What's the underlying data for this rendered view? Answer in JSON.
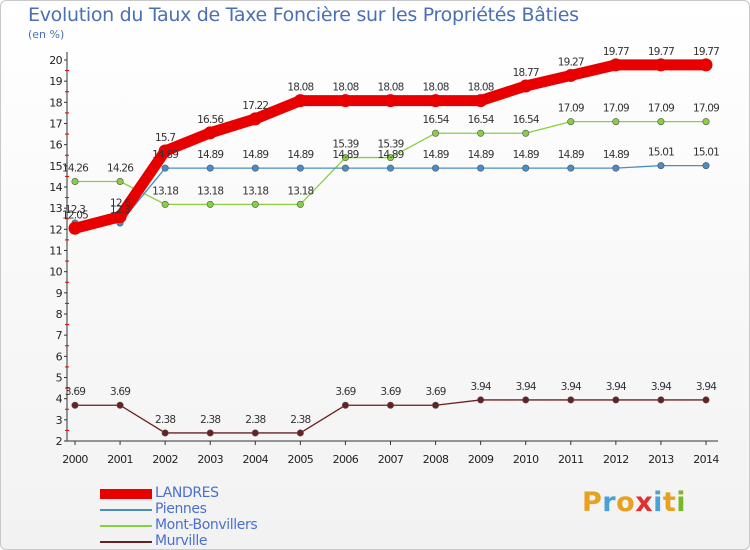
{
  "title": "Evolution du Taux de Taxe Foncière sur les Propriétés Bâties",
  "unit_label": "(en %)",
  "logo": {
    "text": "Proxiti",
    "colors": [
      "#e8a020",
      "#4aa0d8",
      "#e8a020",
      "#e23030",
      "#4aa0d8",
      "#e8a020",
      "#78b828"
    ]
  },
  "chart_data": {
    "type": "line",
    "title": "Evolution du Taux de Taxe Foncière sur les Propriétés Bâties",
    "ylabel": "(en %)",
    "xlabel": "",
    "categories": [
      "2000",
      "2001",
      "2002",
      "2003",
      "2004",
      "2005",
      "2006",
      "2007",
      "2008",
      "2009",
      "2010",
      "2011",
      "2012",
      "2013",
      "2014"
    ],
    "ylim": [
      2,
      20
    ],
    "yticks": [
      "2",
      "3",
      "4",
      "5",
      "6",
      "7",
      "8",
      "9",
      "10",
      "11",
      "12",
      "13",
      "14",
      "15",
      "16",
      "17",
      "18",
      "19",
      "20"
    ],
    "grid": false,
    "legend_position": "bottom-left",
    "series": [
      {
        "name": "LANDRES",
        "color": "#e80000",
        "thick": true,
        "values": [
          12.05,
          12.6,
          15.7,
          16.56,
          17.22,
          18.08,
          18.08,
          18.08,
          18.08,
          18.08,
          18.77,
          19.27,
          19.77,
          19.77,
          19.77
        ],
        "labels": [
          "12.05",
          "12.6",
          "15.7",
          "16.56",
          "17.22",
          "18.08",
          "18.08",
          "18.08",
          "18.08",
          "18.08",
          "18.77",
          "19.27",
          "19.77",
          "19.77",
          "19.77"
        ]
      },
      {
        "name": "Piennes",
        "color": "#4a8cc8",
        "thick": false,
        "values": [
          12.3,
          12.3,
          14.89,
          14.89,
          14.89,
          14.89,
          14.89,
          14.89,
          14.89,
          14.89,
          14.89,
          14.89,
          14.89,
          15.01,
          15.01
        ],
        "labels": [
          "12.3",
          "12.3",
          "14.89",
          "14.89",
          "14.89",
          "14.89",
          "14.89",
          "14.89",
          "14.89",
          "14.89",
          "14.89",
          "14.89",
          "14.89",
          "15.01",
          "15.01"
        ]
      },
      {
        "name": "Mont-Bonvillers",
        "color": "#88d040",
        "thick": false,
        "values": [
          14.26,
          14.26,
          13.18,
          13.18,
          13.18,
          13.18,
          15.39,
          15.39,
          16.54,
          16.54,
          16.54,
          17.09,
          17.09,
          17.09,
          17.09
        ],
        "labels": [
          "14.26",
          "14.26",
          "13.18",
          "13.18",
          "13.18",
          "13.18",
          "15.39",
          "15.39",
          "16.54",
          "16.54",
          "16.54",
          "17.09",
          "17.09",
          "17.09",
          "17.09"
        ]
      },
      {
        "name": "Murville",
        "color": "#6a2020",
        "thick": false,
        "values": [
          3.69,
          3.69,
          2.38,
          2.38,
          2.38,
          2.38,
          3.69,
          3.69,
          3.69,
          3.94,
          3.94,
          3.94,
          3.94,
          3.94,
          3.94
        ],
        "labels": [
          "3.69",
          "3.69",
          "2.38",
          "2.38",
          "2.38",
          "2.38",
          "3.69",
          "3.69",
          "3.69",
          "3.94",
          "3.94",
          "3.94",
          "3.94",
          "3.94",
          "3.94"
        ]
      }
    ]
  }
}
